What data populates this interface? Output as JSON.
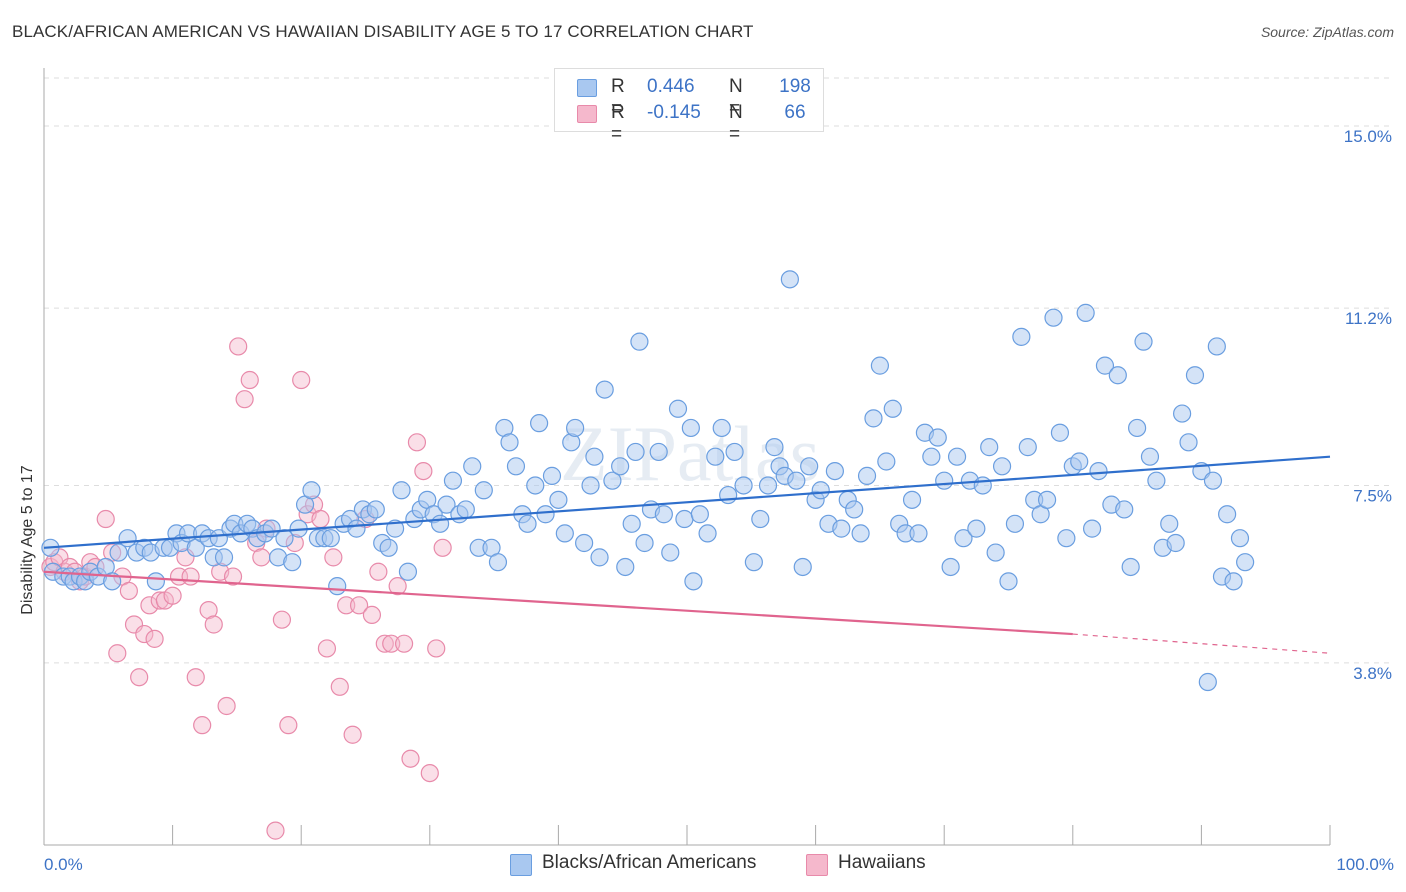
{
  "header": {
    "title": "BLACK/AFRICAN AMERICAN VS HAWAIIAN DISABILITY AGE 5 TO 17 CORRELATION CHART",
    "source": "Source: ZipAtlas.com"
  },
  "stats": {
    "rows": [
      {
        "r_label": "R =",
        "r_value": "0.446",
        "n_label": "N =",
        "n_value": "198"
      },
      {
        "r_label": "R =",
        "r_value": "-0.145",
        "n_label": "N =",
        "n_value": "66"
      }
    ]
  },
  "legend": {
    "items": [
      {
        "label": "Blacks/African Americans"
      },
      {
        "label": "Hawaiians"
      }
    ]
  },
  "colors": {
    "blue_fill": "#a9c8f0",
    "blue_stroke": "#6a9ee0",
    "blue_line": "#2f6fcc",
    "pink_fill": "#f5b8cc",
    "pink_stroke": "#e88aaa",
    "pink_line": "#e0648e",
    "tick_label": "#3d73c6",
    "grid": "#dddddd"
  },
  "chart_data": {
    "type": "scatter",
    "title": "BLACK/AFRICAN AMERICAN VS HAWAIIAN DISABILITY AGE 5 TO 17 CORRELATION CHART",
    "xlabel": "",
    "ylabel": "Disability Age 5 to 17",
    "xlim": [
      0,
      100
    ],
    "ylim": [
      0,
      16.0
    ],
    "x_tick_labels": [
      "0.0%",
      "100.0%"
    ],
    "y_ticks": [
      3.8,
      7.5,
      11.2,
      15.0
    ],
    "y_tick_labels": [
      "3.8%",
      "7.5%",
      "11.2%",
      "15.0%"
    ],
    "grid": true,
    "legend_position": "bottom-center",
    "watermark": "ZIPatlas",
    "series": [
      {
        "name": "Blacks/African Americans",
        "trend": {
          "x": [
            0,
            100
          ],
          "y": [
            6.2,
            8.1
          ]
        },
        "points": [
          [
            0.5,
            6.2
          ],
          [
            0.7,
            5.7
          ],
          [
            1.5,
            5.6
          ],
          [
            2.0,
            5.6
          ],
          [
            2.3,
            5.5
          ],
          [
            2.8,
            5.6
          ],
          [
            3.2,
            5.5
          ],
          [
            3.6,
            5.7
          ],
          [
            4.2,
            5.6
          ],
          [
            4.8,
            5.8
          ],
          [
            5.3,
            5.5
          ],
          [
            5.8,
            6.1
          ],
          [
            6.5,
            6.4
          ],
          [
            7.2,
            6.1
          ],
          [
            7.8,
            6.2
          ],
          [
            8.3,
            6.1
          ],
          [
            8.7,
            5.5
          ],
          [
            9.3,
            6.2
          ],
          [
            9.8,
            6.2
          ],
          [
            10.3,
            6.5
          ],
          [
            10.7,
            6.3
          ],
          [
            11.2,
            6.5
          ],
          [
            11.8,
            6.2
          ],
          [
            12.3,
            6.5
          ],
          [
            12.8,
            6.4
          ],
          [
            13.2,
            6.0
          ],
          [
            13.6,
            6.4
          ],
          [
            14.0,
            6.0
          ],
          [
            14.5,
            6.6
          ],
          [
            14.8,
            6.7
          ],
          [
            15.3,
            6.5
          ],
          [
            15.8,
            6.7
          ],
          [
            16.2,
            6.6
          ],
          [
            16.6,
            6.4
          ],
          [
            17.2,
            6.5
          ],
          [
            17.7,
            6.6
          ],
          [
            18.2,
            6.0
          ],
          [
            18.7,
            6.4
          ],
          [
            19.3,
            5.9
          ],
          [
            19.8,
            6.6
          ],
          [
            20.3,
            7.1
          ],
          [
            20.8,
            7.4
          ],
          [
            21.3,
            6.4
          ],
          [
            21.8,
            6.4
          ],
          [
            22.3,
            6.4
          ],
          [
            22.8,
            5.4
          ],
          [
            23.3,
            6.7
          ],
          [
            23.8,
            6.8
          ],
          [
            24.3,
            6.6
          ],
          [
            24.8,
            7.0
          ],
          [
            25.3,
            6.9
          ],
          [
            25.8,
            7.0
          ],
          [
            26.3,
            6.3
          ],
          [
            26.8,
            6.2
          ],
          [
            27.3,
            6.6
          ],
          [
            27.8,
            7.4
          ],
          [
            28.3,
            5.7
          ],
          [
            28.8,
            6.8
          ],
          [
            29.3,
            7.0
          ],
          [
            29.8,
            7.2
          ],
          [
            30.3,
            6.9
          ],
          [
            30.8,
            6.7
          ],
          [
            31.3,
            7.1
          ],
          [
            31.8,
            7.6
          ],
          [
            32.3,
            6.9
          ],
          [
            32.8,
            7.0
          ],
          [
            33.3,
            7.9
          ],
          [
            33.8,
            6.2
          ],
          [
            34.2,
            7.4
          ],
          [
            34.8,
            6.2
          ],
          [
            35.3,
            5.9
          ],
          [
            35.8,
            8.7
          ],
          [
            36.2,
            8.4
          ],
          [
            36.7,
            7.9
          ],
          [
            37.2,
            6.9
          ],
          [
            37.6,
            6.7
          ],
          [
            38.2,
            7.5
          ],
          [
            38.5,
            8.8
          ],
          [
            39.0,
            6.9
          ],
          [
            39.5,
            7.7
          ],
          [
            40.0,
            7.2
          ],
          [
            40.5,
            6.5
          ],
          [
            41.0,
            8.4
          ],
          [
            41.3,
            8.7
          ],
          [
            42.0,
            6.3
          ],
          [
            42.5,
            7.5
          ],
          [
            42.8,
            8.1
          ],
          [
            43.2,
            6.0
          ],
          [
            43.6,
            9.5
          ],
          [
            44.2,
            7.6
          ],
          [
            44.8,
            7.9
          ],
          [
            45.2,
            5.8
          ],
          [
            45.7,
            6.7
          ],
          [
            46.0,
            8.2
          ],
          [
            46.3,
            10.5
          ],
          [
            46.7,
            6.3
          ],
          [
            47.2,
            7.0
          ],
          [
            47.8,
            8.2
          ],
          [
            48.2,
            6.9
          ],
          [
            48.7,
            6.1
          ],
          [
            49.3,
            9.1
          ],
          [
            49.8,
            6.8
          ],
          [
            50.3,
            8.7
          ],
          [
            50.5,
            5.5
          ],
          [
            51.0,
            6.9
          ],
          [
            51.6,
            6.5
          ],
          [
            52.2,
            8.1
          ],
          [
            52.7,
            8.7
          ],
          [
            53.2,
            7.3
          ],
          [
            53.7,
            8.2
          ],
          [
            54.4,
            7.5
          ],
          [
            55.2,
            5.9
          ],
          [
            55.7,
            6.8
          ],
          [
            56.3,
            7.5
          ],
          [
            56.8,
            8.3
          ],
          [
            57.2,
            7.9
          ],
          [
            57.6,
            7.7
          ],
          [
            58.0,
            11.8
          ],
          [
            58.5,
            7.6
          ],
          [
            59.0,
            5.8
          ],
          [
            59.5,
            7.9
          ],
          [
            60.0,
            7.2
          ],
          [
            60.4,
            7.4
          ],
          [
            61.0,
            6.7
          ],
          [
            61.5,
            7.8
          ],
          [
            62.0,
            6.6
          ],
          [
            62.5,
            7.2
          ],
          [
            63.0,
            7.0
          ],
          [
            63.5,
            6.5
          ],
          [
            64.0,
            7.7
          ],
          [
            64.5,
            8.9
          ],
          [
            65.0,
            10.0
          ],
          [
            65.5,
            8.0
          ],
          [
            66.0,
            9.1
          ],
          [
            66.5,
            6.7
          ],
          [
            67.0,
            6.5
          ],
          [
            67.5,
            7.2
          ],
          [
            68.0,
            6.5
          ],
          [
            68.5,
            8.6
          ],
          [
            69.0,
            8.1
          ],
          [
            69.5,
            8.5
          ],
          [
            70.0,
            7.6
          ],
          [
            70.5,
            5.8
          ],
          [
            71.0,
            8.1
          ],
          [
            71.5,
            6.4
          ],
          [
            72.0,
            7.6
          ],
          [
            72.5,
            6.6
          ],
          [
            73.0,
            7.5
          ],
          [
            73.5,
            8.3
          ],
          [
            74.0,
            6.1
          ],
          [
            74.5,
            7.9
          ],
          [
            75.0,
            5.5
          ],
          [
            75.5,
            6.7
          ],
          [
            76.0,
            10.6
          ],
          [
            76.5,
            8.3
          ],
          [
            77.0,
            7.2
          ],
          [
            77.5,
            6.9
          ],
          [
            78.0,
            7.2
          ],
          [
            78.5,
            11.0
          ],
          [
            79.0,
            8.6
          ],
          [
            79.5,
            6.4
          ],
          [
            80.0,
            7.9
          ],
          [
            80.5,
            8.0
          ],
          [
            81.0,
            11.1
          ],
          [
            81.5,
            6.6
          ],
          [
            82.0,
            7.8
          ],
          [
            82.5,
            10.0
          ],
          [
            83.0,
            7.1
          ],
          [
            83.5,
            9.8
          ],
          [
            84.0,
            7.0
          ],
          [
            84.5,
            5.8
          ],
          [
            85.0,
            8.7
          ],
          [
            85.5,
            10.5
          ],
          [
            86.0,
            8.1
          ],
          [
            86.5,
            7.6
          ],
          [
            87.0,
            6.2
          ],
          [
            87.5,
            6.7
          ],
          [
            88.0,
            6.3
          ],
          [
            88.5,
            9.0
          ],
          [
            89.0,
            8.4
          ],
          [
            89.5,
            9.8
          ],
          [
            90.0,
            7.8
          ],
          [
            90.5,
            3.4
          ],
          [
            90.9,
            7.6
          ],
          [
            91.2,
            10.4
          ],
          [
            91.6,
            5.6
          ],
          [
            92.0,
            6.9
          ],
          [
            92.5,
            5.5
          ],
          [
            93.0,
            6.4
          ],
          [
            93.4,
            5.9
          ]
        ]
      },
      {
        "name": "Hawaiians",
        "trend": {
          "x": [
            0,
            80
          ],
          "y": [
            5.7,
            4.4
          ],
          "dashed_to": {
            "x": 100,
            "y": 4.0
          }
        },
        "points": [
          [
            0.5,
            5.8
          ],
          [
            0.8,
            5.9
          ],
          [
            1.2,
            6.0
          ],
          [
            1.6,
            5.7
          ],
          [
            2.0,
            5.8
          ],
          [
            2.4,
            5.7
          ],
          [
            2.8,
            5.5
          ],
          [
            3.2,
            5.6
          ],
          [
            3.6,
            5.9
          ],
          [
            4.0,
            5.8
          ],
          [
            4.8,
            6.8
          ],
          [
            5.3,
            6.1
          ],
          [
            5.7,
            4.0
          ],
          [
            6.1,
            5.6
          ],
          [
            6.6,
            5.3
          ],
          [
            7.0,
            4.6
          ],
          [
            7.4,
            3.5
          ],
          [
            7.8,
            4.4
          ],
          [
            8.2,
            5.0
          ],
          [
            8.6,
            4.3
          ],
          [
            9.0,
            5.1
          ],
          [
            9.4,
            5.1
          ],
          [
            10.0,
            5.2
          ],
          [
            10.5,
            5.6
          ],
          [
            11.0,
            6.0
          ],
          [
            11.4,
            5.6
          ],
          [
            11.8,
            3.5
          ],
          [
            12.3,
            2.5
          ],
          [
            12.8,
            4.9
          ],
          [
            13.2,
            4.6
          ],
          [
            13.7,
            5.7
          ],
          [
            14.2,
            2.9
          ],
          [
            14.7,
            5.6
          ],
          [
            15.1,
            10.4
          ],
          [
            15.6,
            9.3
          ],
          [
            16.0,
            9.7
          ],
          [
            16.5,
            6.3
          ],
          [
            16.9,
            6.0
          ],
          [
            17.3,
            6.6
          ],
          [
            18.0,
            0.3
          ],
          [
            18.5,
            4.7
          ],
          [
            19.0,
            2.5
          ],
          [
            19.5,
            6.3
          ],
          [
            20.0,
            9.7
          ],
          [
            20.5,
            6.9
          ],
          [
            21.0,
            7.1
          ],
          [
            21.5,
            6.8
          ],
          [
            22.0,
            4.1
          ],
          [
            22.5,
            6.0
          ],
          [
            23.0,
            3.3
          ],
          [
            23.5,
            5.0
          ],
          [
            24.0,
            2.3
          ],
          [
            24.5,
            5.0
          ],
          [
            25.0,
            6.8
          ],
          [
            25.5,
            4.8
          ],
          [
            26.0,
            5.7
          ],
          [
            26.5,
            4.2
          ],
          [
            27.0,
            4.2
          ],
          [
            27.5,
            5.4
          ],
          [
            28.0,
            4.2
          ],
          [
            28.5,
            1.8
          ],
          [
            29.0,
            8.4
          ],
          [
            29.5,
            7.8
          ],
          [
            30.0,
            1.5
          ],
          [
            30.5,
            4.1
          ],
          [
            31.0,
            6.2
          ]
        ]
      }
    ]
  }
}
